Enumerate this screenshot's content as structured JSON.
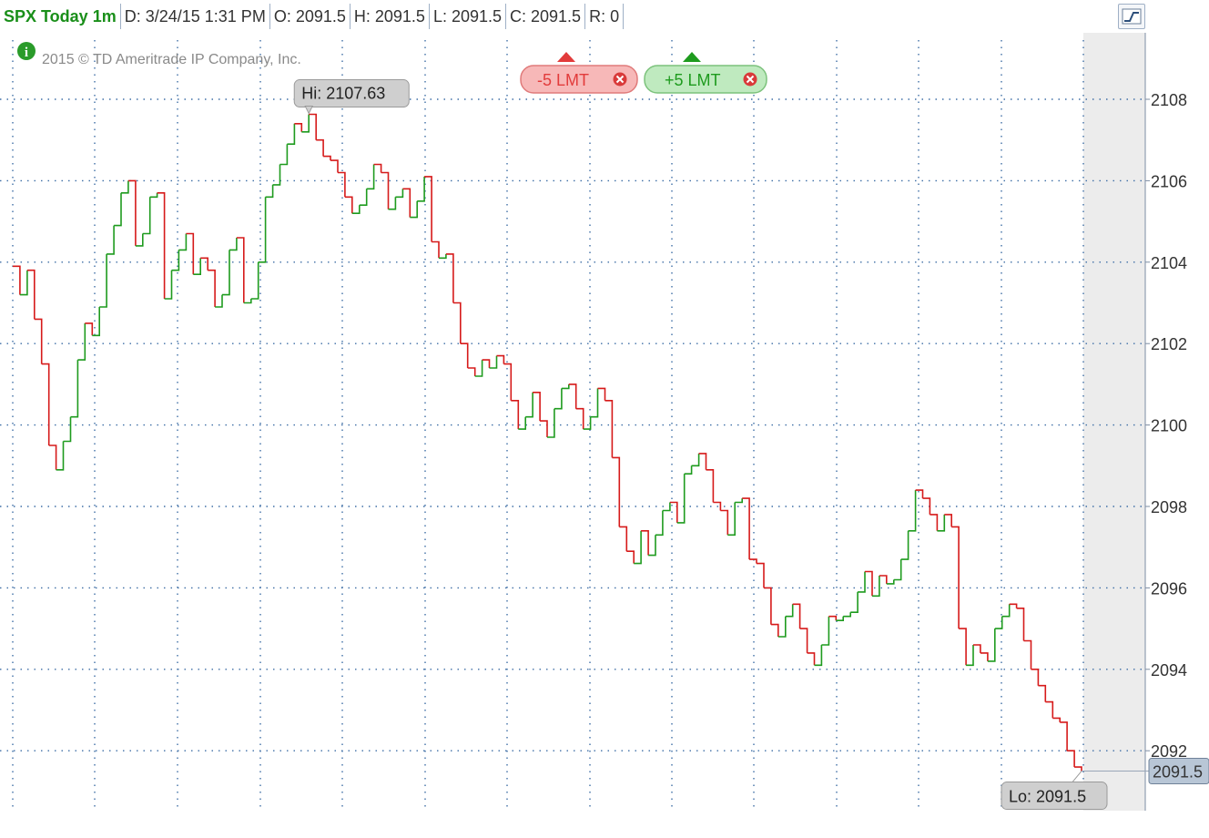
{
  "header": {
    "symbol": "SPX Today 1m",
    "date": "D: 3/24/15 1:31 PM",
    "open": "O: 2091.5",
    "high": "H: 2091.5",
    "low": "L: 2091.5",
    "close": "C: 2091.5",
    "range": "R: 0",
    "chart_style_icon": "chart-style-icon"
  },
  "copyright": "2015 © TD Ameritrade IP Company, Inc.",
  "info_icon": "info-icon",
  "orders": {
    "sell": {
      "label": "-5 LMT",
      "color": "#e23b3b",
      "bg": "#f7b8b8"
    },
    "buy": {
      "label": "+5 LMT",
      "color": "#1e9b1e",
      "bg": "#bfeabf"
    }
  },
  "callouts": {
    "hi": "Hi: 2107.63",
    "lo": "Lo: 2091.5",
    "last": "2091.5"
  },
  "colors": {
    "up": "#1e9b1e",
    "down": "#d61a1a",
    "grid": "#3f6fa6",
    "axis_bg": "#ffffff",
    "future_bg": "#ececec"
  },
  "chart_data": {
    "type": "line",
    "title": "SPX Today 1m",
    "ylabel": "",
    "xlabel": "",
    "ylim": [
      2090.5,
      2109.5
    ],
    "yticks": [
      2092,
      2094,
      2096,
      2098,
      2100,
      2102,
      2104,
      2106,
      2108
    ],
    "grid": true,
    "series": [
      {
        "name": "",
        "values": [
          2103.9,
          2103.2,
          2103.8,
          2102.6,
          2101.5,
          2099.5,
          2098.9,
          2099.6,
          2100.2,
          2101.6,
          2102.5,
          2102.2,
          2102.9,
          2104.2,
          2104.9,
          2105.7,
          2106.0,
          2104.4,
          2104.7,
          2105.6,
          2105.7,
          2103.1,
          2103.8,
          2104.3,
          2104.7,
          2103.7,
          2104.1,
          2103.8,
          2102.9,
          2103.2,
          2104.3,
          2104.6,
          2103.0,
          2103.1,
          2104.0,
          2105.6,
          2105.9,
          2106.4,
          2106.9,
          2107.4,
          2107.2,
          2107.63,
          2107.0,
          2106.6,
          2106.5,
          2106.2,
          2105.6,
          2105.2,
          2105.4,
          2105.8,
          2106.4,
          2106.2,
          2105.3,
          2105.6,
          2105.8,
          2105.1,
          2105.5,
          2106.1,
          2104.5,
          2104.1,
          2104.2,
          2103.0,
          2102.0,
          2101.4,
          2101.2,
          2101.6,
          2101.4,
          2101.7,
          2101.5,
          2100.6,
          2099.9,
          2100.2,
          2100.8,
          2100.1,
          2099.7,
          2100.4,
          2100.9,
          2101.0,
          2100.4,
          2099.9,
          2100.2,
          2100.9,
          2100.6,
          2099.2,
          2097.5,
          2096.9,
          2096.6,
          2097.4,
          2096.8,
          2097.3,
          2097.9,
          2098.1,
          2097.6,
          2098.8,
          2099.0,
          2099.3,
          2098.9,
          2098.1,
          2097.9,
          2097.3,
          2098.1,
          2098.2,
          2096.7,
          2096.6,
          2096.0,
          2095.1,
          2094.8,
          2095.3,
          2095.6,
          2095.0,
          2094.4,
          2094.1,
          2094.6,
          2095.3,
          2095.2,
          2095.3,
          2095.4,
          2095.9,
          2096.4,
          2095.8,
          2096.3,
          2096.1,
          2096.2,
          2096.7,
          2097.4,
          2098.4,
          2098.2,
          2097.8,
          2097.4,
          2097.8,
          2097.5,
          2095.0,
          2094.1,
          2094.6,
          2094.4,
          2094.2,
          2095.0,
          2095.3,
          2095.6,
          2095.5,
          2094.7,
          2094.0,
          2093.6,
          2093.2,
          2092.8,
          2092.7,
          2092.0,
          2091.6,
          2091.5
        ]
      }
    ]
  }
}
